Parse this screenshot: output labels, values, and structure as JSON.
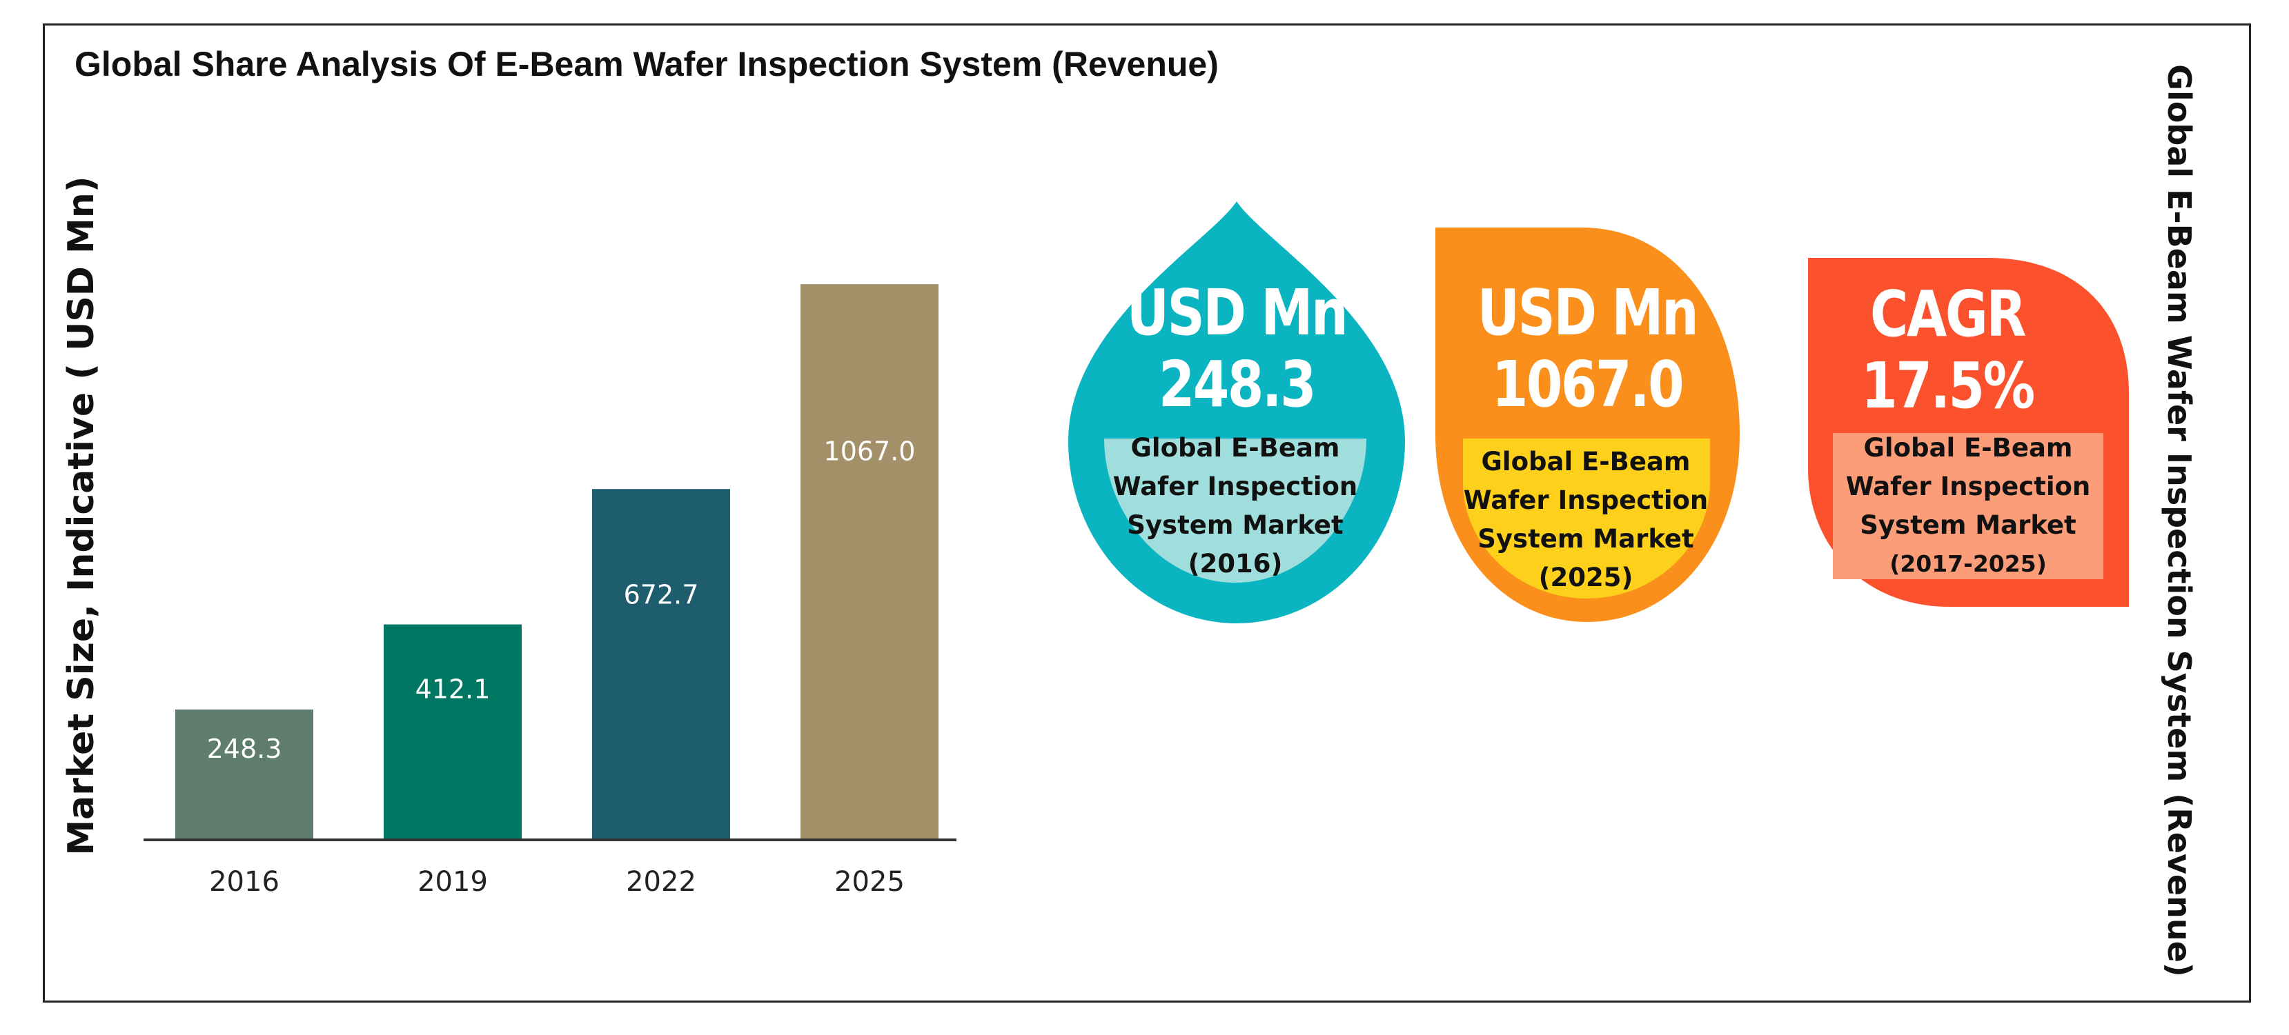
{
  "title": "Global Share Analysis Of E-Beam Wafer Inspection System (Revenue)",
  "side_title": "Global E-Beam Wafer Inspection System (Revenue)",
  "colors": {
    "bars": [
      "#5e7d6c",
      "#007763",
      "#1d5d6e",
      "#a38f68"
    ],
    "kpi1_shape": "#0ab5c1",
    "kpi1_band": "#9fdedc",
    "kpi2_shape": "#fb8f1c",
    "kpi2_band": "#fdd01c",
    "kpi3_shape": "#fb522d",
    "kpi3_band": "#fc9d79"
  },
  "chart_data": {
    "type": "bar",
    "title": "Global Share Analysis Of E-Beam Wafer Inspection System (Revenue)",
    "xlabel": "",
    "ylabel": "Market Size, Indicative ( USD Mn)",
    "categories": [
      "2016",
      "2019",
      "2022",
      "2025"
    ],
    "values": [
      248.3,
      412.1,
      672.7,
      1067.0
    ],
    "value_labels": [
      "248.3",
      "412.1",
      "672.7",
      "1067.0"
    ],
    "grid": false,
    "legend": "none"
  },
  "kpis": [
    {
      "line1": "USD Mn",
      "line2": "248.3",
      "desc": [
        "Global E-Beam",
        "Wafer Inspection",
        "System Market",
        "(2016)"
      ]
    },
    {
      "line1": "USD Mn",
      "line2": "1067.0",
      "desc": [
        "Global E-Beam",
        "Wafer Inspection",
        "System Market",
        "(2025)"
      ]
    },
    {
      "line1": "CAGR",
      "line2": "17.5%",
      "desc": [
        "Global E-Beam",
        "Wafer Inspection",
        "System Market",
        "(2017-2025)"
      ]
    }
  ]
}
